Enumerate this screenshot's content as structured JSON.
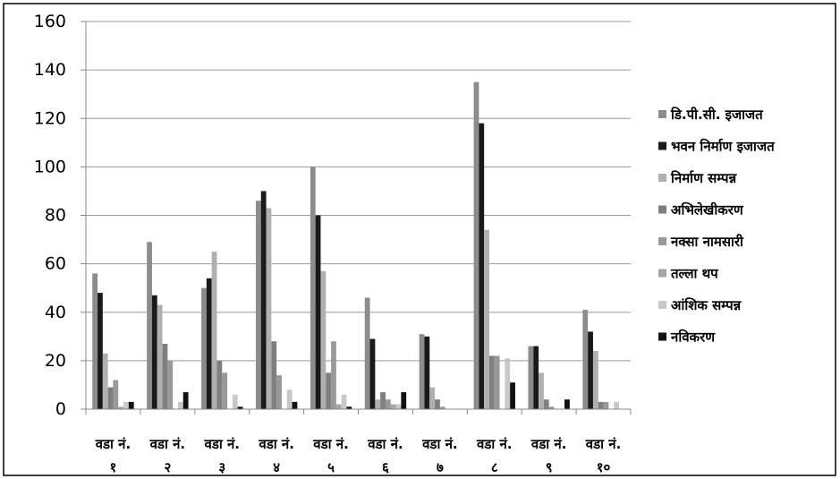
{
  "chart_data": {
    "type": "bar",
    "categories": [
      [
        "वडा नं.",
        "१"
      ],
      [
        "वडा नं.",
        "२"
      ],
      [
        "वडा नं.",
        "३"
      ],
      [
        "वडा नं.",
        "४"
      ],
      [
        "वडा नं.",
        "५"
      ],
      [
        "वडा नं.",
        "६"
      ],
      [
        "वडा नं.",
        "७"
      ],
      [
        "वडा नं.",
        "८"
      ],
      [
        "वडा नं.",
        "९"
      ],
      [
        "वडा नं.",
        "१०"
      ]
    ],
    "ylim": [
      0,
      160
    ],
    "yticks": [
      0,
      20,
      40,
      60,
      80,
      100,
      120,
      140,
      160
    ],
    "grid": true,
    "legend_position": "right",
    "series": [
      {
        "name": "डि.पी.सी. इजाजत",
        "color": "#8c8c8c",
        "values": [
          56,
          69,
          50,
          86,
          100,
          46,
          31,
          135,
          26,
          41
        ]
      },
      {
        "name": "भवन निर्माण इजाजत",
        "color": "#1a1a1a",
        "values": [
          48,
          47,
          54,
          90,
          80,
          29,
          30,
          118,
          26,
          32
        ]
      },
      {
        "name": "निर्माण सम्पन्न",
        "color": "#b0b0b0",
        "values": [
          23,
          43,
          65,
          83,
          57,
          4,
          9,
          74,
          15,
          24
        ]
      },
      {
        "name": "अभिलेखीकरण",
        "color": "#7f7f7f",
        "values": [
          9,
          27,
          20,
          28,
          15,
          7,
          4,
          22,
          4,
          3
        ]
      },
      {
        "name": "नक्सा नामसारी",
        "color": "#999999",
        "values": [
          12,
          20,
          15,
          14,
          28,
          4,
          1,
          22,
          1,
          3
        ]
      },
      {
        "name": "तल्ला थप",
        "color": "#a6a6a6",
        "values": [
          1,
          0,
          0,
          0,
          2,
          2,
          0,
          0,
          0,
          0
        ]
      },
      {
        "name": "आंशिक सम्पन्न",
        "color": "#c8c8c8",
        "values": [
          3,
          3,
          6,
          8,
          6,
          2,
          0,
          21,
          0,
          3
        ]
      },
      {
        "name": "नविकरण",
        "color": "#111111",
        "values": [
          3,
          7,
          1,
          3,
          1,
          7,
          0,
          11,
          4,
          0
        ]
      }
    ]
  }
}
